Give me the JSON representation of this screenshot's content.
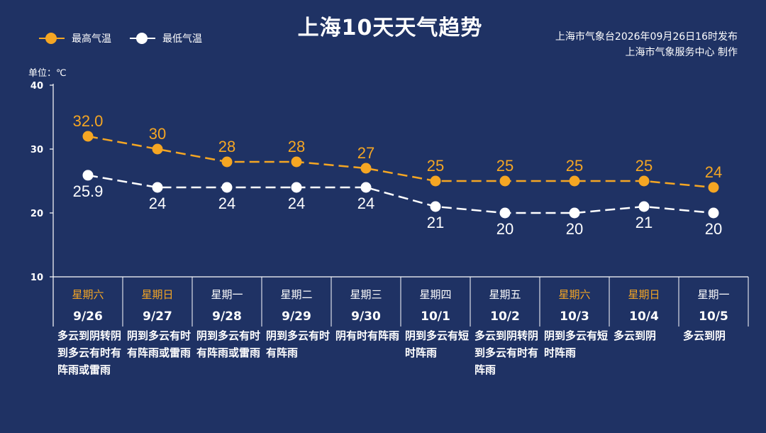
{
  "header": {
    "title": "上海10天天气趋势",
    "publisher_line1": "上海市气象台2026年09月26日16时发布",
    "publisher_line2": "上海市气象服务中心  制作"
  },
  "legend": {
    "high": "最高气温",
    "low": "最低气温"
  },
  "unit_label": "单位：℃",
  "colors": {
    "background": "#1f3264",
    "high": "#f5a623",
    "low": "#ffffff",
    "weekend": "#f5a623"
  },
  "chart_data": {
    "type": "line",
    "ylim": [
      10,
      40
    ],
    "yticks": [
      "40",
      "30",
      "20",
      "10"
    ],
    "categories": [
      "9/26",
      "9/27",
      "9/28",
      "9/29",
      "9/30",
      "10/1",
      "10/2",
      "10/3",
      "10/4",
      "10/5"
    ],
    "weekdays": [
      "星期六",
      "星期日",
      "星期一",
      "星期二",
      "星期三",
      "星期四",
      "星期五",
      "星期六",
      "星期日",
      "星期一"
    ],
    "weekend": [
      true,
      true,
      false,
      false,
      false,
      false,
      false,
      true,
      true,
      false
    ],
    "series": [
      {
        "name": "最高气温",
        "values": [
          32.0,
          30,
          28,
          28,
          27,
          25,
          25,
          25,
          25,
          24
        ],
        "labels": [
          "32.0",
          "30",
          "28",
          "28",
          "27",
          "25",
          "25",
          "25",
          "25",
          "24"
        ]
      },
      {
        "name": "最低气温",
        "values": [
          25.9,
          24,
          24,
          24,
          24,
          21,
          20,
          20,
          21,
          20
        ],
        "labels": [
          "25.9",
          "24",
          "24",
          "24",
          "24",
          "21",
          "20",
          "20",
          "21",
          "20"
        ]
      }
    ],
    "descriptions": [
      "多云到阴转阴到多云有时有阵雨或雷雨",
      "阴到多云有时有阵雨或雷雨",
      "阴到多云有时有阵雨或雷雨",
      "阴到多云有时有阵雨",
      "阴有时有阵雨",
      "阴到多云有短时阵雨",
      "多云到阴转阴到多云有时有阵雨",
      "阴到多云有短时阵雨",
      "多云到阴",
      "多云到阴"
    ]
  }
}
